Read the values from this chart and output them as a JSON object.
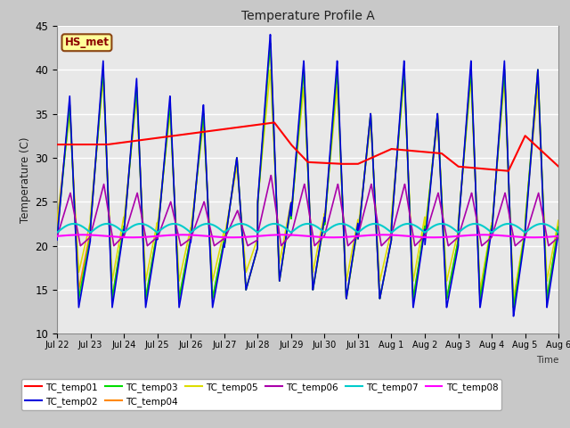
{
  "title": "Temperature Profile A",
  "xlabel": "Time",
  "ylabel": "Temperature (C)",
  "ylim": [
    10,
    45
  ],
  "xlim": [
    0,
    15
  ],
  "fig_bg": "#c8c8c8",
  "plot_bg": "#e8e8e8",
  "series": {
    "TC_temp01": {
      "color": "#ff0000",
      "lw": 1.5,
      "zorder": 10
    },
    "TC_temp02": {
      "color": "#0000dd",
      "lw": 1.2,
      "zorder": 6
    },
    "TC_temp03": {
      "color": "#00dd00",
      "lw": 1.2,
      "zorder": 5
    },
    "TC_temp04": {
      "color": "#ff8800",
      "lw": 1.2,
      "zorder": 5
    },
    "TC_temp05": {
      "color": "#dddd00",
      "lw": 1.2,
      "zorder": 5
    },
    "TC_temp06": {
      "color": "#aa00aa",
      "lw": 1.2,
      "zorder": 7
    },
    "TC_temp07": {
      "color": "#00cccc",
      "lw": 1.5,
      "zorder": 8
    },
    "TC_temp08": {
      "color": "#ff00ff",
      "lw": 1.5,
      "zorder": 9
    }
  },
  "xtick_labels": [
    "Jul 22",
    "Jul 23",
    "Jul 24",
    "Jul 25",
    "Jul 26",
    "Jul 27",
    "Jul 28",
    "Jul 29",
    "Jul 30",
    "Jul 31",
    "Aug 1",
    "Aug 2",
    "Aug 3",
    "Aug 4",
    "Aug 5",
    "Aug 6"
  ],
  "ytick_values": [
    10,
    15,
    20,
    25,
    30,
    35,
    40,
    45
  ],
  "annotation_text": "HS_met",
  "annotation_color": "#8b0000",
  "annotation_bg": "#ffff99",
  "annotation_border": "#8b4513",
  "grid_color": "#ffffff",
  "band_colors": [
    "#dcdcdc",
    "#e8e8e8"
  ],
  "tc01_x": [
    0,
    1.5,
    5.5,
    6.5,
    7.0,
    7.5,
    8.5,
    9.0,
    10.0,
    11.5,
    12.0,
    13.5,
    14.0,
    15.0
  ],
  "tc01_y": [
    31.5,
    31.5,
    33.5,
    34.0,
    31.5,
    29.5,
    29.3,
    29.3,
    31.0,
    30.5,
    29.0,
    28.5,
    32.5,
    29.0
  ]
}
